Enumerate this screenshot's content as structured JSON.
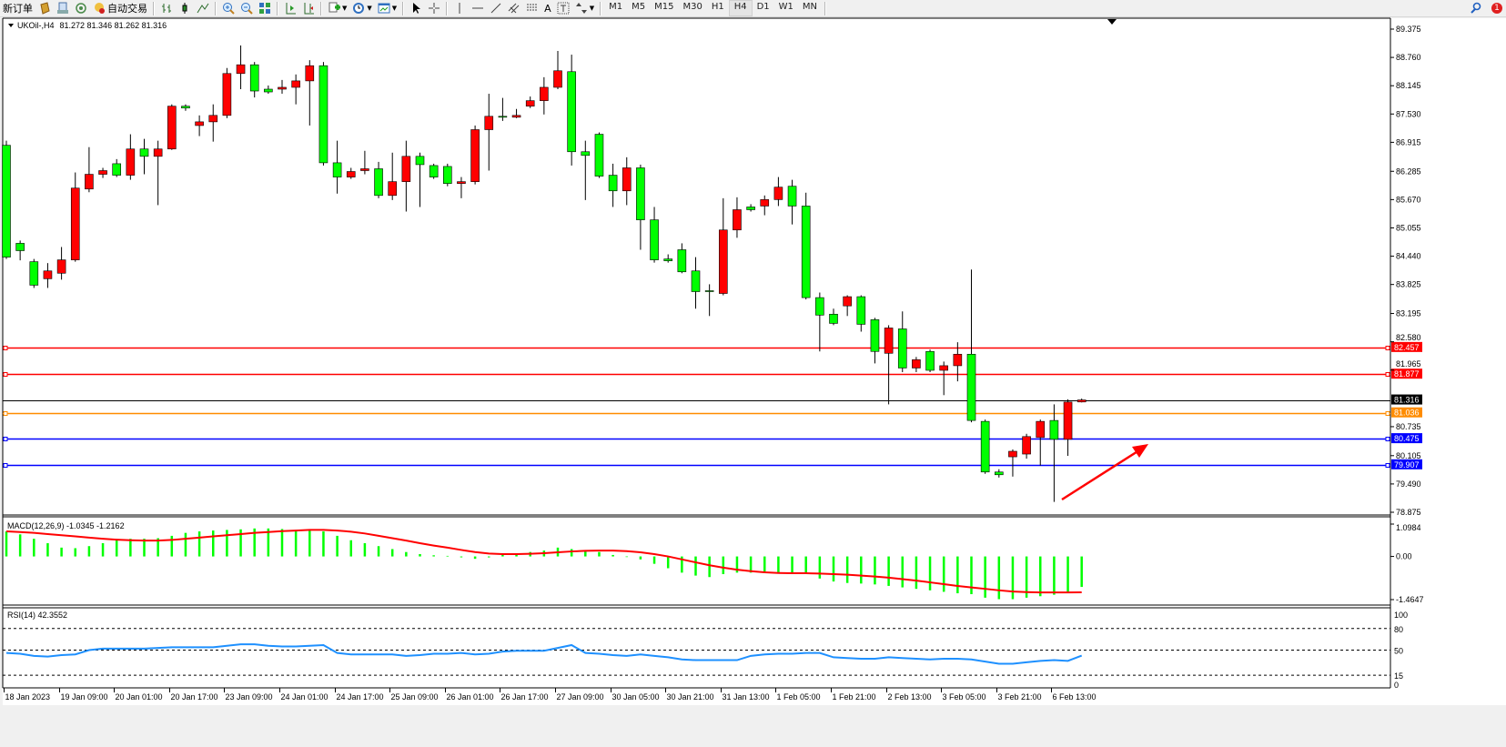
{
  "toolbar": {
    "new_order_label": "新订单",
    "auto_trading_label": "自动交易",
    "icons": [
      "history-center-icon",
      "terminal-icon",
      "signals-icon",
      "auto-trading-icon",
      "bar-chart-icon",
      "candlestick-chart-icon",
      "line-chart-icon",
      "zoom-in-icon",
      "zoom-out-icon",
      "tile-windows-icon",
      "auto-scroll-icon",
      "chart-shift-icon",
      "indicators-icon",
      "periods-icon",
      "templates-icon",
      "cursor-icon",
      "crosshair-icon",
      "vertical-line-icon",
      "horizontal-line-icon",
      "trendline-icon",
      "equidistant-channel-icon",
      "fibonacci-icon",
      "text-icon",
      "text-label-icon",
      "arrows-icon"
    ],
    "text_tool_label": "A",
    "timeframes": [
      "M1",
      "M5",
      "M15",
      "M30",
      "H1",
      "H4",
      "D1",
      "W1",
      "MN"
    ],
    "active_timeframe": "H4",
    "notification_count": "1"
  },
  "chart": {
    "symbol_label": "UKOil-,H4",
    "ohlc_label": "81.272 81.346 81.262 81.316",
    "colors": {
      "bull": "#ff0000",
      "bear": "#00ff00",
      "wick": "#000000",
      "macd_hist": "#00ff00",
      "macd_signal": "#ff0000",
      "rsi": "#1e90ff"
    },
    "price_ticks": [
      "89.375",
      "88.760",
      "88.145",
      "87.530",
      "86.915",
      "86.285",
      "85.670",
      "85.055",
      "84.440",
      "83.825",
      "83.195",
      "82.580",
      "81.965",
      "80.735",
      "80.105",
      "79.490",
      "78.875"
    ],
    "levels": [
      {
        "price": 82.457,
        "label": "82.457",
        "color": "#ff0000"
      },
      {
        "price": 81.877,
        "label": "81.877",
        "color": "#ff0000"
      },
      {
        "price": 81.036,
        "label": "81.036",
        "color": "#ff8c00"
      },
      {
        "price": 80.475,
        "label": "80.475",
        "color": "#0000ff"
      },
      {
        "price": 79.907,
        "label": "79.907",
        "color": "#0000ff"
      }
    ],
    "bid": {
      "price": 81.316,
      "label": "81.316"
    },
    "time_labels": [
      "18 Jan 2023",
      "19 Jan 09:00",
      "20 Jan 01:00",
      "20 Jan 17:00",
      "23 Jan 09:00",
      "24 Jan 01:00",
      "24 Jan 17:00",
      "25 Jan 09:00",
      "26 Jan 01:00",
      "26 Jan 17:00",
      "27 Jan 09:00",
      "30 Jan 05:00",
      "30 Jan 21:00",
      "31 Jan 13:00",
      "1 Feb 05:00",
      "1 Feb 21:00",
      "2 Feb 13:00",
      "3 Feb 05:00",
      "3 Feb 21:00",
      "6 Feb 13:00"
    ],
    "candles": [
      [
        86.85,
        86.95,
        84.38,
        84.42
      ],
      [
        84.72,
        84.78,
        84.35,
        84.56
      ],
      [
        84.32,
        84.38,
        83.75,
        83.81
      ],
      [
        83.95,
        84.29,
        83.75,
        84.12
      ],
      [
        84.07,
        84.64,
        83.93,
        84.36
      ],
      [
        84.36,
        86.26,
        84.32,
        85.92
      ],
      [
        85.9,
        86.81,
        85.83,
        86.22
      ],
      [
        86.22,
        86.36,
        86.14,
        86.3
      ],
      [
        86.45,
        86.55,
        86.16,
        86.2
      ],
      [
        86.2,
        87.09,
        86.1,
        86.77
      ],
      [
        86.77,
        86.99,
        86.22,
        86.61
      ],
      [
        86.61,
        86.95,
        85.55,
        86.77
      ],
      [
        86.77,
        87.74,
        86.75,
        87.7
      ],
      [
        87.7,
        87.74,
        87.6,
        87.66
      ],
      [
        87.28,
        87.5,
        87.05,
        87.36
      ],
      [
        87.36,
        87.74,
        86.93,
        87.5
      ],
      [
        87.5,
        88.53,
        87.44,
        88.41
      ],
      [
        88.41,
        89.02,
        88.07,
        88.6
      ],
      [
        88.6,
        88.66,
        87.89,
        88.03
      ],
      [
        88.07,
        88.15,
        87.97,
        88.01
      ],
      [
        88.07,
        88.27,
        87.97,
        88.11
      ],
      [
        88.11,
        88.39,
        87.74,
        88.25
      ],
      [
        88.25,
        88.7,
        87.28,
        88.58
      ],
      [
        88.58,
        88.66,
        86.41,
        86.47
      ],
      [
        86.47,
        86.95,
        85.8,
        86.16
      ],
      [
        86.16,
        86.36,
        86.12,
        86.28
      ],
      [
        86.3,
        86.73,
        86.22,
        86.34
      ],
      [
        86.34,
        86.49,
        85.7,
        85.76
      ],
      [
        85.76,
        86.69,
        85.66,
        86.06
      ],
      [
        86.06,
        86.95,
        85.41,
        86.61
      ],
      [
        86.61,
        86.69,
        85.51,
        86.43
      ],
      [
        86.41,
        86.45,
        86.12,
        86.16
      ],
      [
        86.39,
        86.45,
        85.96,
        86.02
      ],
      [
        86.02,
        86.16,
        85.7,
        86.06
      ],
      [
        86.06,
        87.28,
        86.0,
        87.19
      ],
      [
        87.19,
        87.97,
        86.3,
        87.48
      ],
      [
        87.48,
        87.88,
        87.38,
        87.46
      ],
      [
        87.46,
        87.64,
        87.44,
        87.5
      ],
      [
        87.7,
        87.91,
        87.66,
        87.82
      ],
      [
        87.82,
        88.33,
        87.52,
        88.11
      ],
      [
        88.11,
        88.9,
        88.07,
        88.47
      ],
      [
        88.45,
        88.82,
        86.41,
        86.71
      ],
      [
        86.71,
        86.95,
        85.66,
        86.63
      ],
      [
        87.09,
        87.13,
        86.14,
        86.18
      ],
      [
        86.2,
        86.45,
        85.51,
        85.86
      ],
      [
        85.86,
        86.59,
        85.55,
        86.36
      ],
      [
        86.36,
        86.43,
        84.58,
        85.23
      ],
      [
        85.23,
        85.51,
        84.3,
        84.36
      ],
      [
        84.38,
        84.48,
        84.3,
        84.34
      ],
      [
        84.58,
        84.72,
        84.07,
        84.1
      ],
      [
        84.12,
        84.42,
        83.3,
        83.67
      ],
      [
        83.69,
        83.83,
        83.14,
        83.67
      ],
      [
        83.63,
        85.7,
        83.59,
        85.01
      ],
      [
        85.01,
        85.72,
        84.84,
        85.45
      ],
      [
        85.51,
        85.57,
        85.41,
        85.45
      ],
      [
        85.53,
        85.76,
        85.33,
        85.67
      ],
      [
        85.67,
        86.16,
        85.53,
        85.94
      ],
      [
        85.96,
        86.1,
        85.13,
        85.53
      ],
      [
        85.53,
        85.82,
        83.5,
        83.54
      ],
      [
        83.54,
        83.65,
        82.37,
        83.16
      ],
      [
        83.18,
        83.3,
        82.94,
        82.98
      ],
      [
        83.36,
        83.59,
        83.14,
        83.56
      ],
      [
        83.56,
        83.59,
        82.8,
        82.96
      ],
      [
        83.06,
        83.1,
        82.11,
        82.37
      ],
      [
        82.33,
        82.94,
        81.22,
        82.88
      ],
      [
        82.86,
        83.24,
        81.92,
        82.01
      ],
      [
        82.01,
        82.25,
        81.92,
        82.19
      ],
      [
        82.37,
        82.41,
        81.92,
        81.96
      ],
      [
        81.96,
        82.15,
        81.42,
        82.06
      ],
      [
        82.06,
        82.57,
        81.72,
        82.31
      ],
      [
        82.31,
        84.15,
        80.83,
        80.87
      ],
      [
        80.85,
        80.89,
        79.71,
        79.75
      ],
      [
        79.75,
        79.81,
        79.63,
        79.69
      ],
      [
        80.08,
        80.24,
        79.65,
        80.2
      ],
      [
        80.14,
        80.58,
        80.04,
        80.52
      ],
      [
        80.5,
        80.89,
        79.89,
        80.85
      ],
      [
        80.87,
        81.22,
        79.1,
        80.46
      ],
      [
        80.46,
        81.33,
        80.1,
        81.27
      ],
      [
        81.272,
        81.346,
        81.262,
        81.316
      ]
    ],
    "price_range": [
      78.875,
      89.375
    ]
  },
  "macd": {
    "label": "MACD(12,26,9) -1.0345 -1.2162",
    "ticks": [
      "1.0984",
      "0.00",
      "-1.4647"
    ],
    "range": [
      -1.4647,
      1.0984
    ],
    "main": [
      0.85,
      0.75,
      0.6,
      0.45,
      0.3,
      0.28,
      0.35,
      0.45,
      0.55,
      0.6,
      0.6,
      0.62,
      0.7,
      0.8,
      0.85,
      0.88,
      0.9,
      0.92,
      0.95,
      0.95,
      0.93,
      0.9,
      0.92,
      0.85,
      0.7,
      0.55,
      0.45,
      0.35,
      0.25,
      0.15,
      0.08,
      0.04,
      0.02,
      -0.03,
      -0.08,
      0.0,
      0.05,
      0.1,
      0.15,
      0.2,
      0.3,
      0.25,
      0.2,
      0.15,
      0.05,
      -0.02,
      -0.1,
      -0.25,
      -0.4,
      -0.55,
      -0.65,
      -0.7,
      -0.6,
      -0.55,
      -0.55,
      -0.55,
      -0.55,
      -0.55,
      -0.6,
      -0.75,
      -0.85,
      -0.9,
      -0.92,
      -0.95,
      -1.0,
      -1.05,
      -1.1,
      -1.15,
      -1.2,
      -1.25,
      -1.28,
      -1.4,
      -1.45,
      -1.45,
      -1.4,
      -1.35,
      -1.3,
      -1.22,
      -1.0345
    ],
    "signal": [
      0.85,
      0.83,
      0.8,
      0.76,
      0.72,
      0.68,
      0.64,
      0.6,
      0.57,
      0.55,
      0.54,
      0.54,
      0.56,
      0.6,
      0.64,
      0.68,
      0.72,
      0.76,
      0.8,
      0.83,
      0.86,
      0.88,
      0.9,
      0.9,
      0.88,
      0.84,
      0.78,
      0.7,
      0.62,
      0.54,
      0.45,
      0.37,
      0.3,
      0.22,
      0.15,
      0.1,
      0.08,
      0.08,
      0.09,
      0.11,
      0.14,
      0.17,
      0.19,
      0.2,
      0.2,
      0.18,
      0.14,
      0.08,
      0.0,
      -0.1,
      -0.2,
      -0.3,
      -0.38,
      -0.45,
      -0.5,
      -0.54,
      -0.56,
      -0.57,
      -0.57,
      -0.58,
      -0.6,
      -0.62,
      -0.65,
      -0.68,
      -0.72,
      -0.77,
      -0.82,
      -0.88,
      -0.94,
      -1.0,
      -1.05,
      -1.1,
      -1.15,
      -1.19,
      -1.21,
      -1.22,
      -1.22,
      -1.22,
      -1.2162
    ]
  },
  "rsi": {
    "label": "RSI(14) 42.3552",
    "ticks": [
      "100",
      "80",
      "50",
      "15",
      "0"
    ],
    "levels": [
      80,
      50,
      15
    ],
    "values": [
      46,
      45,
      42,
      41,
      43,
      44,
      50,
      52,
      52,
      52,
      52,
      53,
      54,
      54,
      54,
      54,
      56,
      58,
      58,
      56,
      55,
      55,
      56,
      57,
      46,
      44,
      44,
      44,
      44,
      42,
      43,
      45,
      45,
      46,
      44,
      45,
      48,
      49,
      49,
      49,
      53,
      57,
      46,
      45,
      43,
      42,
      44,
      42,
      40,
      37,
      36,
      36,
      36,
      36,
      42,
      44,
      45,
      45,
      46,
      46,
      40,
      39,
      38,
      38,
      40,
      39,
      38,
      37,
      38,
      38,
      37,
      34,
      31,
      31,
      33,
      35,
      36,
      35,
      42.3552
    ]
  }
}
